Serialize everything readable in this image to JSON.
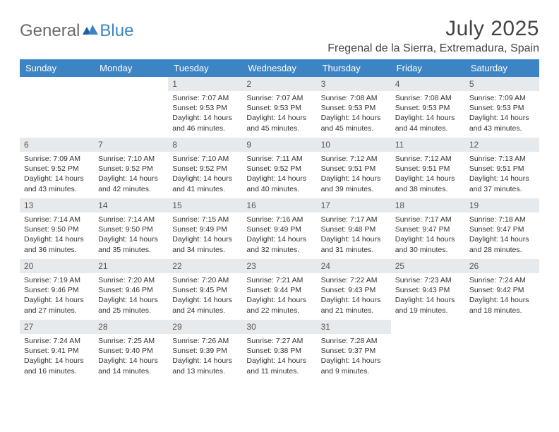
{
  "brand": {
    "part1": "General",
    "part2": "Blue"
  },
  "title": "July 2025",
  "location": "Fregenal de la Sierra, Extremadura, Spain",
  "day_headers": [
    "Sunday",
    "Monday",
    "Tuesday",
    "Wednesday",
    "Thursday",
    "Friday",
    "Saturday"
  ],
  "header_bg": "#3d84c4",
  "header_fg": "#ffffff",
  "daynum_bg": "#e7eaed",
  "text_color": "#333333",
  "weeks": [
    [
      {
        "n": "",
        "sunrise": "",
        "sunset": "",
        "daylight": ""
      },
      {
        "n": "",
        "sunrise": "",
        "sunset": "",
        "daylight": ""
      },
      {
        "n": "1",
        "sunrise": "Sunrise: 7:07 AM",
        "sunset": "Sunset: 9:53 PM",
        "daylight": "Daylight: 14 hours and 46 minutes."
      },
      {
        "n": "2",
        "sunrise": "Sunrise: 7:07 AM",
        "sunset": "Sunset: 9:53 PM",
        "daylight": "Daylight: 14 hours and 45 minutes."
      },
      {
        "n": "3",
        "sunrise": "Sunrise: 7:08 AM",
        "sunset": "Sunset: 9:53 PM",
        "daylight": "Daylight: 14 hours and 45 minutes."
      },
      {
        "n": "4",
        "sunrise": "Sunrise: 7:08 AM",
        "sunset": "Sunset: 9:53 PM",
        "daylight": "Daylight: 14 hours and 44 minutes."
      },
      {
        "n": "5",
        "sunrise": "Sunrise: 7:09 AM",
        "sunset": "Sunset: 9:53 PM",
        "daylight": "Daylight: 14 hours and 43 minutes."
      }
    ],
    [
      {
        "n": "6",
        "sunrise": "Sunrise: 7:09 AM",
        "sunset": "Sunset: 9:52 PM",
        "daylight": "Daylight: 14 hours and 43 minutes."
      },
      {
        "n": "7",
        "sunrise": "Sunrise: 7:10 AM",
        "sunset": "Sunset: 9:52 PM",
        "daylight": "Daylight: 14 hours and 42 minutes."
      },
      {
        "n": "8",
        "sunrise": "Sunrise: 7:10 AM",
        "sunset": "Sunset: 9:52 PM",
        "daylight": "Daylight: 14 hours and 41 minutes."
      },
      {
        "n": "9",
        "sunrise": "Sunrise: 7:11 AM",
        "sunset": "Sunset: 9:52 PM",
        "daylight": "Daylight: 14 hours and 40 minutes."
      },
      {
        "n": "10",
        "sunrise": "Sunrise: 7:12 AM",
        "sunset": "Sunset: 9:51 PM",
        "daylight": "Daylight: 14 hours and 39 minutes."
      },
      {
        "n": "11",
        "sunrise": "Sunrise: 7:12 AM",
        "sunset": "Sunset: 9:51 PM",
        "daylight": "Daylight: 14 hours and 38 minutes."
      },
      {
        "n": "12",
        "sunrise": "Sunrise: 7:13 AM",
        "sunset": "Sunset: 9:51 PM",
        "daylight": "Daylight: 14 hours and 37 minutes."
      }
    ],
    [
      {
        "n": "13",
        "sunrise": "Sunrise: 7:14 AM",
        "sunset": "Sunset: 9:50 PM",
        "daylight": "Daylight: 14 hours and 36 minutes."
      },
      {
        "n": "14",
        "sunrise": "Sunrise: 7:14 AM",
        "sunset": "Sunset: 9:50 PM",
        "daylight": "Daylight: 14 hours and 35 minutes."
      },
      {
        "n": "15",
        "sunrise": "Sunrise: 7:15 AM",
        "sunset": "Sunset: 9:49 PM",
        "daylight": "Daylight: 14 hours and 34 minutes."
      },
      {
        "n": "16",
        "sunrise": "Sunrise: 7:16 AM",
        "sunset": "Sunset: 9:49 PM",
        "daylight": "Daylight: 14 hours and 32 minutes."
      },
      {
        "n": "17",
        "sunrise": "Sunrise: 7:17 AM",
        "sunset": "Sunset: 9:48 PM",
        "daylight": "Daylight: 14 hours and 31 minutes."
      },
      {
        "n": "18",
        "sunrise": "Sunrise: 7:17 AM",
        "sunset": "Sunset: 9:47 PM",
        "daylight": "Daylight: 14 hours and 30 minutes."
      },
      {
        "n": "19",
        "sunrise": "Sunrise: 7:18 AM",
        "sunset": "Sunset: 9:47 PM",
        "daylight": "Daylight: 14 hours and 28 minutes."
      }
    ],
    [
      {
        "n": "20",
        "sunrise": "Sunrise: 7:19 AM",
        "sunset": "Sunset: 9:46 PM",
        "daylight": "Daylight: 14 hours and 27 minutes."
      },
      {
        "n": "21",
        "sunrise": "Sunrise: 7:20 AM",
        "sunset": "Sunset: 9:46 PM",
        "daylight": "Daylight: 14 hours and 25 minutes."
      },
      {
        "n": "22",
        "sunrise": "Sunrise: 7:20 AM",
        "sunset": "Sunset: 9:45 PM",
        "daylight": "Daylight: 14 hours and 24 minutes."
      },
      {
        "n": "23",
        "sunrise": "Sunrise: 7:21 AM",
        "sunset": "Sunset: 9:44 PM",
        "daylight": "Daylight: 14 hours and 22 minutes."
      },
      {
        "n": "24",
        "sunrise": "Sunrise: 7:22 AM",
        "sunset": "Sunset: 9:43 PM",
        "daylight": "Daylight: 14 hours and 21 minutes."
      },
      {
        "n": "25",
        "sunrise": "Sunrise: 7:23 AM",
        "sunset": "Sunset: 9:43 PM",
        "daylight": "Daylight: 14 hours and 19 minutes."
      },
      {
        "n": "26",
        "sunrise": "Sunrise: 7:24 AM",
        "sunset": "Sunset: 9:42 PM",
        "daylight": "Daylight: 14 hours and 18 minutes."
      }
    ],
    [
      {
        "n": "27",
        "sunrise": "Sunrise: 7:24 AM",
        "sunset": "Sunset: 9:41 PM",
        "daylight": "Daylight: 14 hours and 16 minutes."
      },
      {
        "n": "28",
        "sunrise": "Sunrise: 7:25 AM",
        "sunset": "Sunset: 9:40 PM",
        "daylight": "Daylight: 14 hours and 14 minutes."
      },
      {
        "n": "29",
        "sunrise": "Sunrise: 7:26 AM",
        "sunset": "Sunset: 9:39 PM",
        "daylight": "Daylight: 14 hours and 13 minutes."
      },
      {
        "n": "30",
        "sunrise": "Sunrise: 7:27 AM",
        "sunset": "Sunset: 9:38 PM",
        "daylight": "Daylight: 14 hours and 11 minutes."
      },
      {
        "n": "31",
        "sunrise": "Sunrise: 7:28 AM",
        "sunset": "Sunset: 9:37 PM",
        "daylight": "Daylight: 14 hours and 9 minutes."
      },
      {
        "n": "",
        "sunrise": "",
        "sunset": "",
        "daylight": ""
      },
      {
        "n": "",
        "sunrise": "",
        "sunset": "",
        "daylight": ""
      }
    ]
  ]
}
